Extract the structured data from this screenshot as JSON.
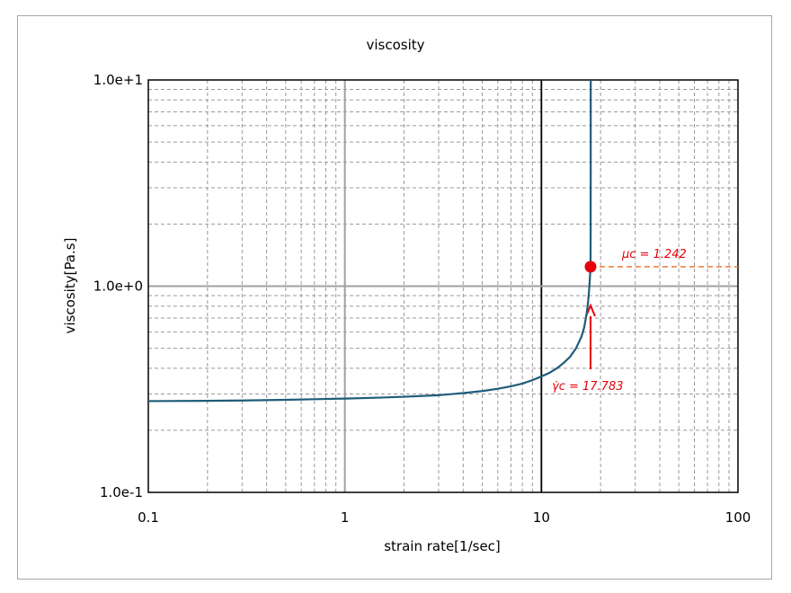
{
  "chart_data": {
    "type": "line",
    "title": "viscosity",
    "xlabel": "strain rate[1/sec]",
    "ylabel": "viscosity[Pa.s]",
    "xscale": "log",
    "yscale": "log",
    "xlim": [
      0.1,
      100
    ],
    "ylim": [
      0.1,
      10
    ],
    "grid": true,
    "x_tick_labels": [
      "0.1",
      "1",
      "10",
      "100"
    ],
    "y_tick_labels": [
      "1.0e-1",
      "1.0e+0",
      "1.0e+1"
    ],
    "series": [
      {
        "color": "#1f5c78",
        "x": [
          0.1,
          0.2,
          0.3,
          0.5,
          0.7,
          1,
          1.5,
          2,
          3,
          4,
          5,
          6,
          7,
          8,
          9,
          10,
          11,
          12,
          13,
          14,
          15,
          16,
          16.5,
          17,
          17.3,
          17.5,
          17.65,
          17.75,
          17.783,
          17.8,
          17.81,
          17.82
        ],
        "y": [
          0.277,
          0.278,
          0.279,
          0.281,
          0.283,
          0.285,
          0.288,
          0.291,
          0.296,
          0.303,
          0.31,
          0.318,
          0.327,
          0.337,
          0.35,
          0.365,
          0.38,
          0.4,
          0.425,
          0.455,
          0.5,
          0.57,
          0.63,
          0.74,
          0.85,
          0.97,
          1.1,
          1.2,
          1.242,
          1.8,
          3.5,
          10
        ]
      }
    ],
    "critical_point": {
      "x": 17.783,
      "y": 1.242,
      "color": "#e8000b"
    },
    "annotations": [
      {
        "text": "μc = 1.242",
        "color": "#e8000b"
      },
      {
        "text": "γ̇c = 17.783",
        "color": "#e8000b"
      }
    ],
    "reference_line_color": "#ed7d31"
  }
}
